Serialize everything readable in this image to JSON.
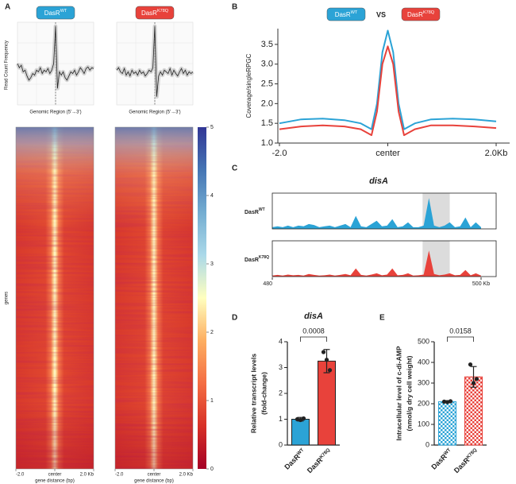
{
  "chart_data": [
    {
      "type": "heatmap",
      "panel": "A",
      "profile_ylabel": "Read Count Frequency",
      "profile_xlabel": "Genomic Region (5'→3')",
      "profile_ylim": [
        0,
        1
      ],
      "series": [
        {
          "name": {
            "base": "DasR",
            "sup": "WT"
          },
          "color": "#2ba3d6",
          "values": [
            0.5,
            0.45,
            0.48,
            0.4,
            0.42,
            0.35,
            0.3,
            0.33,
            0.38,
            0.36,
            0.42,
            0.4,
            0.45,
            0.38,
            0.42,
            0.4,
            0.44,
            0.38,
            0.42,
            0.5,
            0.95,
            0.2,
            0.4,
            0.36,
            0.4,
            0.33,
            0.3,
            0.35,
            0.4,
            0.38,
            0.42,
            0.36,
            0.4,
            0.45,
            0.42,
            0.38,
            0.44,
            0.46,
            0.42,
            0.45,
            0.44
          ]
        },
        {
          "name": {
            "base": "DasR",
            "sup": "K78Q"
          },
          "color": "#e8423b",
          "values": [
            0.42,
            0.45,
            0.4,
            0.38,
            0.44,
            0.36,
            0.4,
            0.35,
            0.42,
            0.38,
            0.4,
            0.36,
            0.42,
            0.38,
            0.4,
            0.35,
            0.38,
            0.42,
            0.4,
            0.45,
            0.95,
            0.1,
            0.35,
            0.4,
            0.36,
            0.42,
            0.4,
            0.38,
            0.44,
            0.36,
            0.42,
            0.38,
            0.35,
            0.4,
            0.44,
            0.38,
            0.42,
            0.36,
            0.4,
            0.38,
            0.4
          ]
        }
      ],
      "ylabel": "genes",
      "xlabel": "gene distance (bp)",
      "xlim": [
        -2,
        2
      ],
      "xticks": [
        {
          "value": -2,
          "label": "-2.0"
        },
        {
          "value": 0,
          "label": "center"
        },
        {
          "value": 2,
          "label": "2.0 Kb"
        }
      ],
      "zlim": [
        0,
        5
      ],
      "zticks": [
        0,
        1,
        2,
        3,
        4,
        5
      ],
      "colorscale": [
        "#a50026",
        "#d73027",
        "#f46d43",
        "#fdae61",
        "#ffffbf",
        "#abd9e9",
        "#74add1",
        "#4575b4",
        "#313695"
      ]
    },
    {
      "type": "line",
      "panel": "B",
      "legend_separator": "VS",
      "ylabel": "Coverage/singleRPGC",
      "x": [
        -2,
        -1.6,
        -1.2,
        -0.8,
        -0.5,
        -0.3,
        -0.2,
        -0.1,
        0,
        0.1,
        0.2,
        0.3,
        0.5,
        0.8,
        1.2,
        1.6,
        2
      ],
      "series": [
        {
          "name": {
            "base": "DasR",
            "sup": "WT"
          },
          "color": "#2ba3d6",
          "values": [
            1.5,
            1.6,
            1.62,
            1.58,
            1.5,
            1.35,
            2.0,
            3.3,
            3.85,
            3.3,
            2.0,
            1.35,
            1.5,
            1.6,
            1.62,
            1.6,
            1.55
          ]
        },
        {
          "name": {
            "base": "DasR",
            "sup": "K78Q"
          },
          "color": "#e8423b",
          "values": [
            1.35,
            1.42,
            1.45,
            1.42,
            1.35,
            1.2,
            1.8,
            3.0,
            3.45,
            3.0,
            1.8,
            1.2,
            1.35,
            1.45,
            1.45,
            1.42,
            1.38
          ]
        }
      ],
      "xlim": [
        -2,
        2
      ],
      "xticks": [
        {
          "value": -2,
          "label": "-2.0"
        },
        {
          "value": 0,
          "label": "center"
        },
        {
          "value": 2,
          "label": "2.0Kb"
        }
      ],
      "ylim": [
        1,
        3.9
      ],
      "yticks": [
        {
          "value": 1,
          "label": "1.0"
        },
        1.5,
        {
          "value": 2,
          "label": "2.0"
        },
        2.5,
        {
          "value": 3,
          "label": "3.0"
        },
        3.5
      ]
    },
    {
      "type": "track",
      "panel": "C",
      "title": "disA",
      "x": [
        480,
        480.5,
        481,
        481.5,
        482,
        482.5,
        483,
        483.5,
        484,
        484.5,
        485,
        485.5,
        486,
        486.5,
        487,
        487.5,
        488,
        488.5,
        489,
        489.5,
        490,
        490.5,
        491,
        491.5,
        492,
        492.5,
        493,
        493.5,
        494,
        494.5,
        495,
        495.5,
        496,
        496.5,
        497,
        497.5,
        498,
        498.5,
        499,
        499.5,
        500
      ],
      "series": [
        {
          "name": {
            "base": "DasR",
            "sup": "WT"
          },
          "color": "#2ba3d6",
          "values": [
            0.05,
            0.08,
            0.05,
            0.1,
            0.05,
            0.1,
            0.08,
            0.15,
            0.12,
            0.05,
            0.08,
            0.1,
            0.05,
            0.1,
            0.15,
            0.05,
            0.4,
            0.08,
            0.05,
            0.15,
            0.25,
            0.08,
            0.1,
            0.3,
            0.05,
            0.08,
            0.2,
            0.05,
            0.05,
            0.1,
            0.95,
            0.1,
            0.05,
            0.1,
            0.2,
            0.05,
            0.08,
            0.35,
            0.05,
            0.2,
            0.05
          ]
        },
        {
          "name": {
            "base": "DasR",
            "sup": "K78Q"
          },
          "color": "#e8423b",
          "values": [
            0.03,
            0.05,
            0.03,
            0.06,
            0.04,
            0.05,
            0.03,
            0.08,
            0.05,
            0.03,
            0.04,
            0.06,
            0.03,
            0.05,
            0.08,
            0.04,
            0.25,
            0.05,
            0.03,
            0.06,
            0.1,
            0.04,
            0.06,
            0.25,
            0.04,
            0.05,
            0.1,
            0.03,
            0.04,
            0.06,
            0.8,
            0.08,
            0.04,
            0.06,
            0.1,
            0.04,
            0.05,
            0.2,
            0.04,
            0.1,
            0.03
          ]
        }
      ],
      "ylim": [
        0,
        1
      ],
      "xlim": [
        480,
        500
      ],
      "xticks": [
        {
          "value": 480,
          "label": "480"
        },
        {
          "value": 500,
          "label": "500 Kb"
        }
      ],
      "highlight": [
        494.4,
        497
      ]
    },
    {
      "type": "bar",
      "panel": "D",
      "title": "disA",
      "ylabel": [
        "Relative transcript levels",
        "(fold-change)"
      ],
      "categories": [
        {
          "base": "DasR",
          "sup": "WT"
        },
        {
          "base": "DasR",
          "sup": "K78Q"
        }
      ],
      "values": [
        1.0,
        3.25
      ],
      "errors": [
        0.07,
        0.45
      ],
      "points": [
        [
          1.0,
          0.97,
          1.03
        ],
        [
          3.6,
          3.3,
          2.9
        ]
      ],
      "colors": [
        "#2ba3d6",
        "#e8423b"
      ],
      "hatch": "none",
      "ylim": [
        0,
        4
      ],
      "yticks": [
        0,
        1,
        2,
        3,
        4
      ],
      "comparison": "0.0008"
    },
    {
      "type": "bar",
      "panel": "E",
      "ylabel": [
        "Intracellular level of c-di-AMP",
        "(nmol/g dry cell weight)"
      ],
      "categories": [
        {
          "base": "DasR",
          "sup": "WT"
        },
        {
          "base": "DasR",
          "sup": "K78Q"
        }
      ],
      "values": [
        210,
        330
      ],
      "errors": [
        5,
        50
      ],
      "points": [
        [
          210,
          208,
          212
        ],
        [
          390,
          300,
          320
        ]
      ],
      "colors": [
        "#2ba3d6",
        "#e8423b"
      ],
      "hatch": "checker",
      "ylim": [
        0,
        500
      ],
      "yticks": [
        0,
        100,
        200,
        300,
        400,
        500
      ],
      "comparison": "0.0158"
    }
  ]
}
